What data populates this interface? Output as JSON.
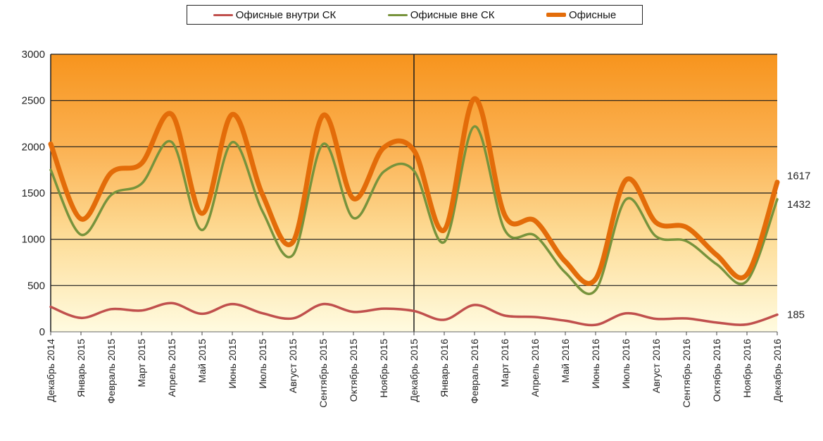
{
  "chart_data": {
    "type": "line",
    "title": "",
    "xlabel": "",
    "ylabel": "",
    "ylim": [
      0,
      3000
    ],
    "yticks": [
      0,
      500,
      1000,
      1500,
      2000,
      2500,
      3000
    ],
    "grid": true,
    "legend_position": "top",
    "x_tick_labels": [
      "Декабрь 2014",
      "Январь 2015",
      "Февраль 2015",
      "Март 2015",
      "Апрель 2015",
      "Май 2015",
      "Июнь 2015",
      "Июль 2015",
      "Август 2015",
      "Сентябрь 2015",
      "Октябрь 2015",
      "Ноябрь 2015",
      "Декабрь 2015",
      "Январь 2016",
      "Февраль 2016",
      "Март 2016",
      "Апрель 2016",
      "Май 2016",
      "Июнь 2016",
      "Июль 2016",
      "Август 2016",
      "Сентябрь 2016",
      "Октябрь 2016",
      "Ноябрь 2016",
      "Декабрь 2016"
    ],
    "series": [
      {
        "name": "Офисные внутри СК",
        "color": "#c0504d",
        "values": [
          270,
          150,
          245,
          230,
          310,
          195,
          300,
          200,
          145,
          300,
          215,
          250,
          225,
          130,
          290,
          175,
          160,
          120,
          75,
          200,
          140,
          145,
          100,
          80,
          185
        ]
      },
      {
        "name": "Офисные вне СК",
        "color": "#77933c",
        "values": [
          1750,
          1050,
          1480,
          1600,
          2050,
          1100,
          2050,
          1300,
          830,
          2030,
          1230,
          1730,
          1740,
          970,
          2220,
          1100,
          1040,
          640,
          450,
          1430,
          1030,
          980,
          730,
          550,
          1432
        ]
      },
      {
        "name": "Офисные",
        "color": "#e36c09",
        "values": [
          2030,
          1220,
          1720,
          1820,
          2350,
          1280,
          2350,
          1480,
          970,
          2340,
          1440,
          1990,
          1960,
          1100,
          2520,
          1260,
          1200,
          760,
          570,
          1640,
          1180,
          1130,
          830,
          620,
          1617
        ]
      }
    ],
    "end_labels": [
      "1617",
      "1432",
      "185"
    ]
  }
}
